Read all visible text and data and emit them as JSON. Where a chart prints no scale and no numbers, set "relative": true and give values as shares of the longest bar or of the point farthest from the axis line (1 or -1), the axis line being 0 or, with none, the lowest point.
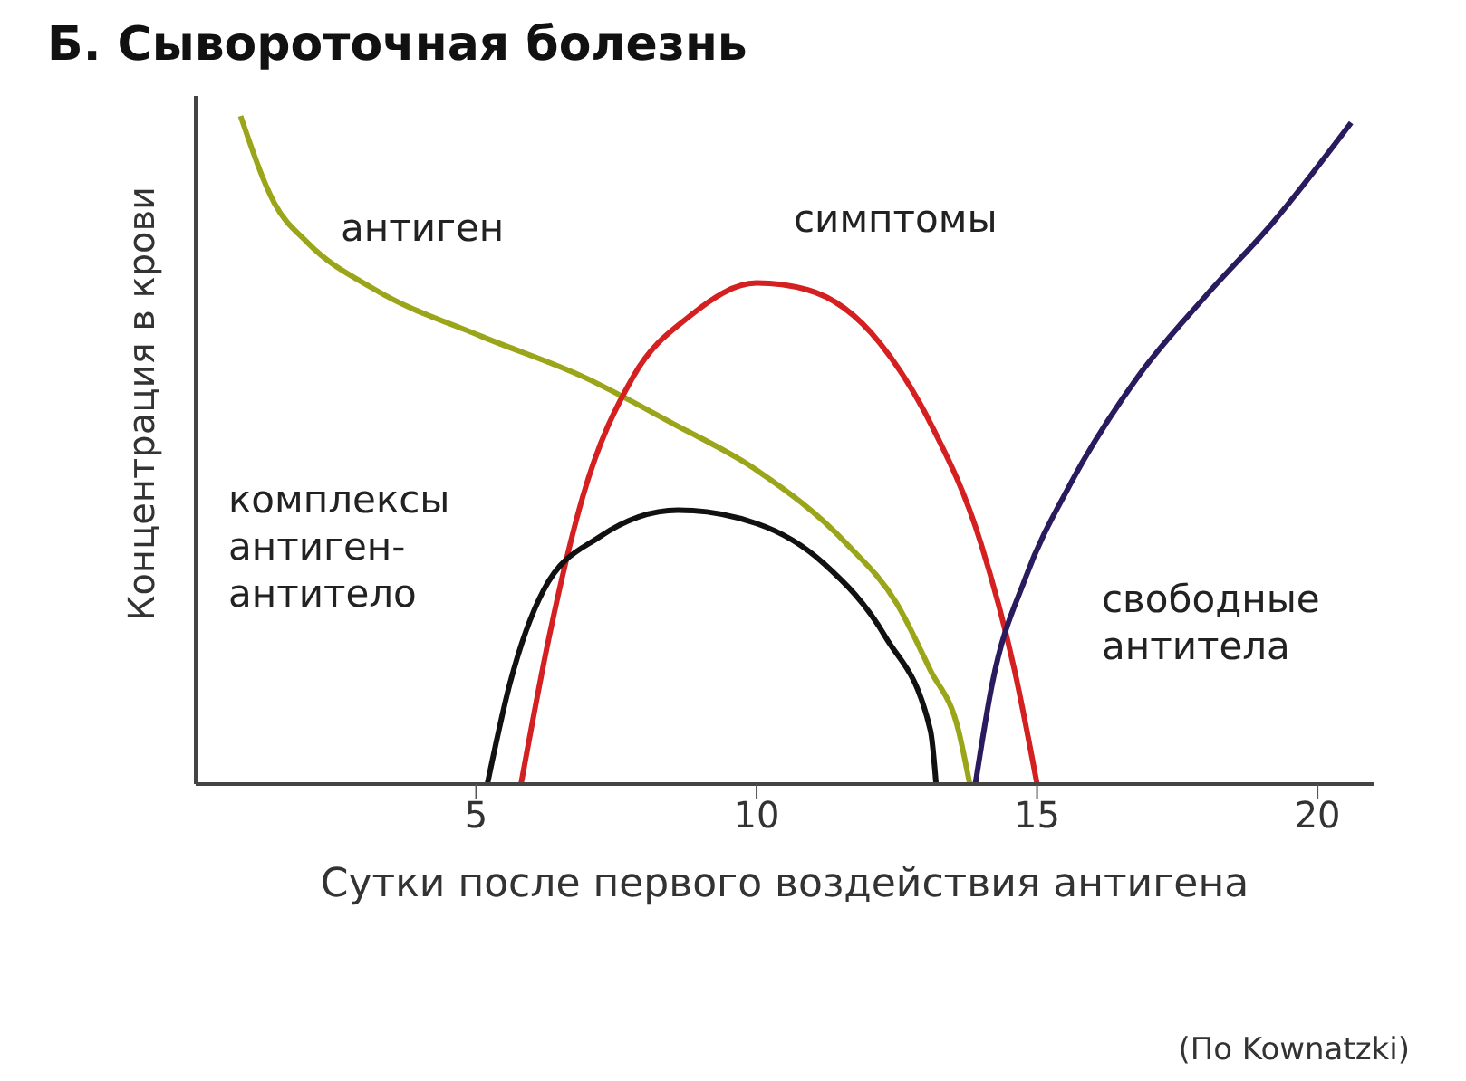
{
  "chart_data": {
    "type": "line",
    "title": "Б. Сывороточная болезнь",
    "xlabel": "Сутки после первого воздействия антигена",
    "ylabel": "Концентрация в крови",
    "annotations": [
      "(По Kownatzki)"
    ],
    "relative": true,
    "xlim": [
      0,
      21
    ],
    "xticks": [
      5,
      10,
      15,
      20
    ],
    "grid": false,
    "legend": false,
    "marker": "none",
    "line_style": "solid",
    "series": [
      {
        "name": "антиген",
        "color": "#9aa51a",
        "x": [
          0.8,
          1.4,
          2.0,
          3.2,
          5.1,
          6.9,
          8.5,
          10.0,
          11.6,
          12.5,
          13.1,
          13.6,
          13.8
        ],
        "values": [
          1.0,
          0.87,
          0.81,
          0.74,
          0.67,
          0.61,
          0.54,
          0.47,
          0.36,
          0.27,
          0.17,
          0.08,
          0
        ]
      },
      {
        "name": "симптомы",
        "color": "#d42020",
        "x": [
          5.8,
          6.3,
          6.9,
          7.8,
          8.8,
          10.0,
          10.9,
          12.2,
          13.1,
          14.0,
          14.6,
          15.0
        ],
        "values": [
          0,
          0.22,
          0.43,
          0.61,
          0.7,
          0.75,
          0.74,
          0.66,
          0.54,
          0.36,
          0.17,
          0
        ]
      },
      {
        "name": "комплексы антиген-антитело",
        "color": "#111111",
        "x": [
          5.2,
          5.6,
          6.2,
          7.2,
          8.6,
          10.0,
          11.2,
          12.3,
          13.1,
          13.2
        ],
        "values": [
          0,
          0.15,
          0.29,
          0.37,
          0.41,
          0.39,
          0.33,
          0.22,
          0.08,
          0
        ]
      },
      {
        "name": "свободные антитела",
        "color": "#2a1a5e",
        "x": [
          13.9,
          14.2,
          14.8,
          15.6,
          16.8,
          18.0,
          19.2,
          20.6
        ],
        "values": [
          0,
          0.15,
          0.31,
          0.45,
          0.61,
          0.73,
          0.84,
          0.99
        ]
      }
    ]
  }
}
